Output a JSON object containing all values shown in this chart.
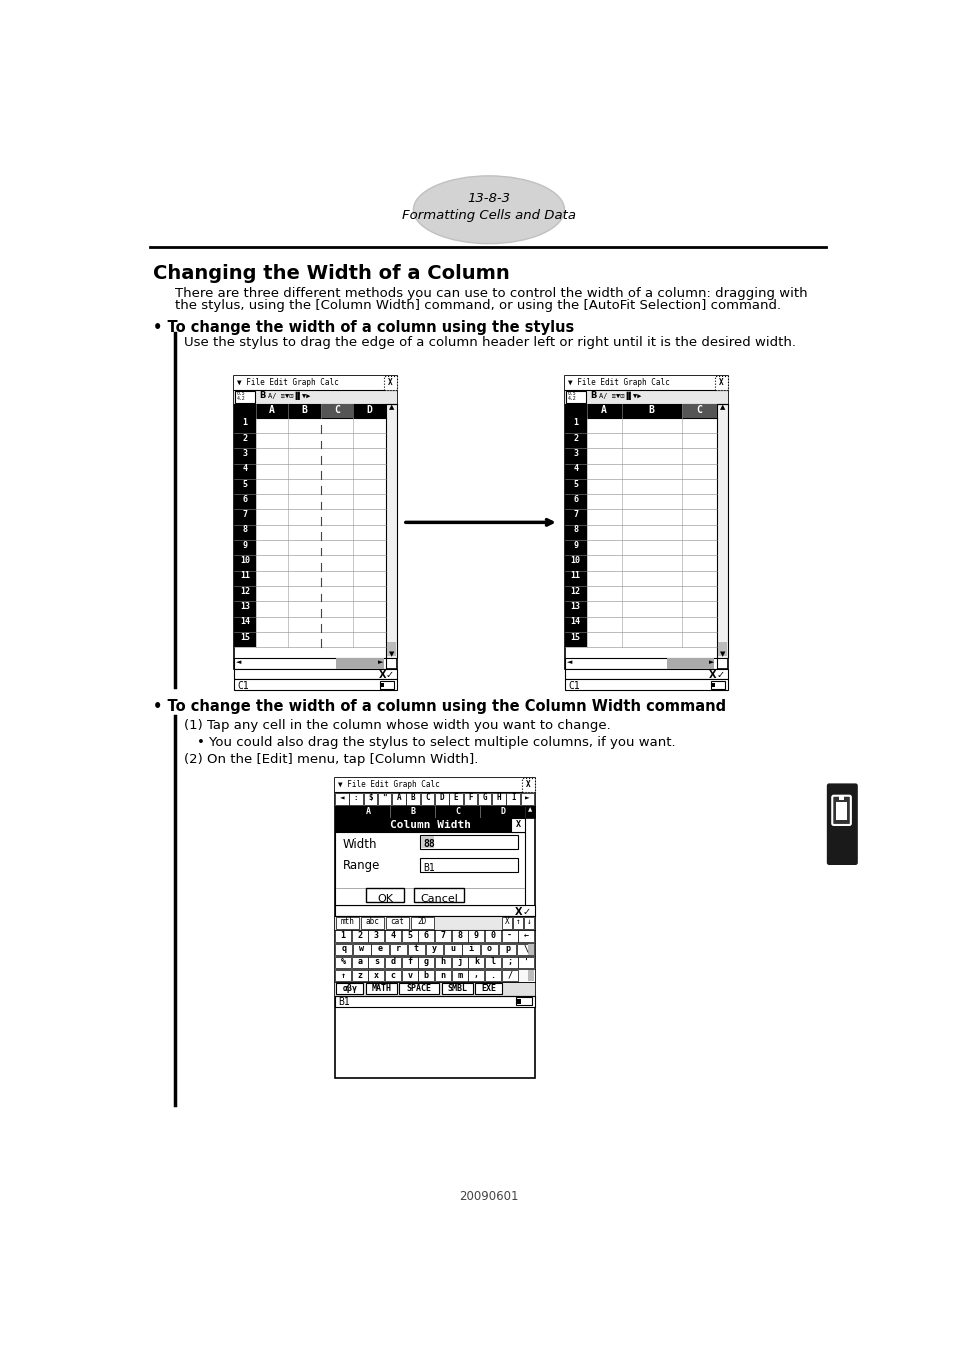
{
  "page_header_num": "13-8-3",
  "page_header_sub": "Formatting Cells and Data",
  "section_title": "Changing the Width of a Column",
  "intro_line1": "There are three different methods you can use to control the width of a column: dragging with",
  "intro_line2": "the stylus, using the [Column Width] command, or using the [AutoFit Selection] command.",
  "bullet1_title": "• To change the width of a column using the stylus",
  "bullet1_body": "Use the stylus to drag the edge of a column header left or right until it is the desired width.",
  "bullet2_title": "• To change the width of a column using the Column Width command",
  "step1": "(1) Tap any cell in the column whose width you want to change.",
  "step1_sub": "• You could also drag the stylus to select multiple columns, if you want.",
  "step2": "(2) On the [Edit] menu, tap [Column Width].",
  "footer": "20090601",
  "bg_color": "#ffffff"
}
